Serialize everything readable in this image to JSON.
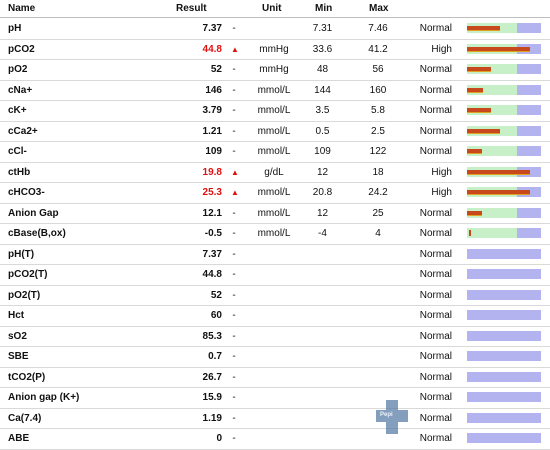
{
  "header": {
    "name": "Name",
    "result": "Result",
    "unit": "Unit",
    "min": "Min",
    "max": "Max"
  },
  "rows": [
    {
      "name": "pH",
      "result": "7.37",
      "flag": "",
      "dash": "-",
      "unit": "",
      "min": "7.31",
      "max": "7.46",
      "status": "Normal",
      "abnormal": false,
      "ranged": true,
      "level": 0.45
    },
    {
      "name": "pCO2",
      "result": "44.8",
      "flag": "▲",
      "dash": "",
      "unit": "mmHg",
      "min": "33.6",
      "max": "41.2",
      "status": "High",
      "abnormal": true,
      "ranged": true,
      "level": 0.85
    },
    {
      "name": "pO2",
      "result": "52",
      "flag": "",
      "dash": "-",
      "unit": "mmHg",
      "min": "48",
      "max": "56",
      "status": "Normal",
      "abnormal": false,
      "ranged": true,
      "level": 0.32
    },
    {
      "name": "cNa+",
      "result": "146",
      "flag": "",
      "dash": "-",
      "unit": "mmol/L",
      "min": "144",
      "max": "160",
      "status": "Normal",
      "abnormal": false,
      "ranged": true,
      "level": 0.22
    },
    {
      "name": "cK+",
      "result": "3.79",
      "flag": "",
      "dash": "-",
      "unit": "mmol/L",
      "min": "3.5",
      "max": "5.8",
      "status": "Normal",
      "abnormal": false,
      "ranged": true,
      "level": 0.32
    },
    {
      "name": "cCa2+",
      "result": "1.21",
      "flag": "",
      "dash": "-",
      "unit": "mmol/L",
      "min": "0.5",
      "max": "2.5",
      "status": "Normal",
      "abnormal": false,
      "ranged": true,
      "level": 0.45
    },
    {
      "name": "cCl-",
      "result": "109",
      "flag": "",
      "dash": "-",
      "unit": "mmol/L",
      "min": "109",
      "max": "122",
      "status": "Normal",
      "abnormal": false,
      "ranged": true,
      "level": 0.2
    },
    {
      "name": "ctHb",
      "result": "19.8",
      "flag": "▲",
      "dash": "",
      "unit": "g/dL",
      "min": "12",
      "max": "18",
      "status": "High",
      "abnormal": true,
      "ranged": true,
      "level": 0.85
    },
    {
      "name": "cHCO3-",
      "result": "25.3",
      "flag": "▲",
      "dash": "",
      "unit": "mmol/L",
      "min": "20.8",
      "max": "24.2",
      "status": "High",
      "abnormal": true,
      "ranged": true,
      "level": 0.85
    },
    {
      "name": "Anion Gap",
      "result": "12.1",
      "flag": "",
      "dash": "-",
      "unit": "mmol/L",
      "min": "12",
      "max": "25",
      "status": "Normal",
      "abnormal": false,
      "ranged": true,
      "level": 0.2
    },
    {
      "name": "cBase(B,ox)",
      "result": "-0.5",
      "flag": "",
      "dash": "-",
      "unit": "mmol/L",
      "min": "-4",
      "max": "4",
      "status": "Normal",
      "abnormal": false,
      "ranged": true,
      "level": 0.0
    },
    {
      "name": "pH(T)",
      "result": "7.37",
      "flag": "",
      "dash": "-",
      "unit": "",
      "min": "",
      "max": "",
      "status": "Normal",
      "abnormal": false,
      "ranged": false,
      "level": 0
    },
    {
      "name": "pCO2(T)",
      "result": "44.8",
      "flag": "",
      "dash": "-",
      "unit": "",
      "min": "",
      "max": "",
      "status": "Normal",
      "abnormal": false,
      "ranged": false,
      "level": 0
    },
    {
      "name": "pO2(T)",
      "result": "52",
      "flag": "",
      "dash": "-",
      "unit": "",
      "min": "",
      "max": "",
      "status": "Normal",
      "abnormal": false,
      "ranged": false,
      "level": 0
    },
    {
      "name": "Hct",
      "result": "60",
      "flag": "",
      "dash": "-",
      "unit": "",
      "min": "",
      "max": "",
      "status": "Normal",
      "abnormal": false,
      "ranged": false,
      "level": 0
    },
    {
      "name": "sO2",
      "result": "85.3",
      "flag": "",
      "dash": "-",
      "unit": "",
      "min": "",
      "max": "",
      "status": "Normal",
      "abnormal": false,
      "ranged": false,
      "level": 0
    },
    {
      "name": "SBE",
      "result": "0.7",
      "flag": "",
      "dash": "-",
      "unit": "",
      "min": "",
      "max": "",
      "status": "Normal",
      "abnormal": false,
      "ranged": false,
      "level": 0
    },
    {
      "name": "tCO2(P)",
      "result": "26.7",
      "flag": "",
      "dash": "-",
      "unit": "",
      "min": "",
      "max": "",
      "status": "Normal",
      "abnormal": false,
      "ranged": false,
      "level": 0
    },
    {
      "name": "Anion gap (K+)",
      "result": "15.9",
      "flag": "",
      "dash": "-",
      "unit": "",
      "min": "",
      "max": "",
      "status": "Normal",
      "abnormal": false,
      "ranged": false,
      "level": 0
    },
    {
      "name": "Ca(7.4)",
      "result": "1.19",
      "flag": "",
      "dash": "-",
      "unit": "",
      "min": "",
      "max": "",
      "status": "Normal",
      "abnormal": false,
      "ranged": false,
      "level": 0
    },
    {
      "name": "ABE",
      "result": "0",
      "flag": "",
      "dash": "-",
      "unit": "",
      "min": "",
      "max": "",
      "status": "Normal",
      "abnormal": false,
      "ranged": false,
      "level": 0
    }
  ],
  "colors": {
    "abnormal": "#e01010",
    "bar_track": "#b3b3f0",
    "bar_normal_zone": "#c8f0c8",
    "bar_fill": "#c84a1c"
  },
  "watermark": {
    "icon": "medical-cross-logo",
    "text": "Pepi"
  }
}
